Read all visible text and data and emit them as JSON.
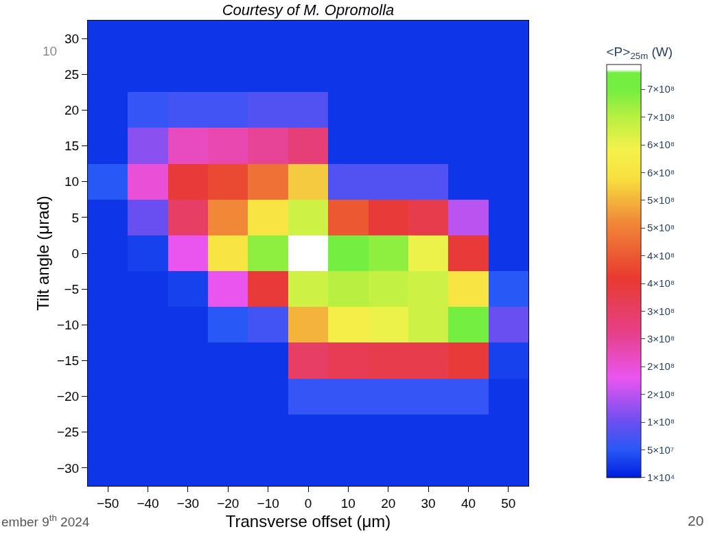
{
  "chart_data": {
    "type": "heatmap",
    "title": "Courtesy of M. Opromolla",
    "xlabel": "Transverse offset (μm)",
    "ylabel": "Tilt angle (μrad)",
    "clabel": "<P>$_{25m}$ (W)",
    "categories": [
      "−50",
      "−40",
      "−30",
      "−20",
      "−10",
      "0",
      "10",
      "20",
      "30",
      "40",
      "50"
    ],
    "y_categories": [
      "30",
      "25",
      "20",
      "15",
      "10",
      "5",
      "0",
      "−5",
      "−10",
      "−15",
      "−20",
      "−25",
      "−30"
    ],
    "cells": [
      [
        20000000.0,
        20000000.0,
        20000000.0,
        20000000.0,
        20000000.0,
        20000000.0,
        20000000.0,
        20000000.0,
        20000000.0,
        20000000.0,
        20000000.0
      ],
      [
        20000000.0,
        20000000.0,
        20000000.0,
        20000000.0,
        20000000.0,
        20000000.0,
        20000000.0,
        20000000.0,
        20000000.0,
        20000000.0,
        20000000.0
      ],
      [
        20000000.0,
        60000000.0,
        70000000.0,
        70000000.0,
        80000000.0,
        80000000.0,
        20000000.0,
        20000000.0,
        20000000.0,
        20000000.0,
        20000000.0
      ],
      [
        20000000.0,
        120000000.0,
        220000000.0,
        230000000.0,
        250000000.0,
        280000000.0,
        20000000.0,
        20000000.0,
        20000000.0,
        20000000.0,
        20000000.0
      ],
      [
        50000000.0,
        200000000.0,
        350000000.0,
        380000000.0,
        430000000.0,
        520000000.0,
        80000000.0,
        80000000.0,
        80000000.0,
        20000000.0,
        20000000.0
      ],
      [
        20000000.0,
        100000000.0,
        300000000.0,
        460000000.0,
        550000000.0,
        630000000.0,
        400000000.0,
        350000000.0,
        330000000.0,
        150000000.0,
        20000000.0
      ],
      [
        20000000.0,
        30000000.0,
        180000000.0,
        550000000.0,
        680000000.0,
        740000000.0,
        720000000.0,
        680000000.0,
        600000000.0,
        350000000.0,
        20000000.0
      ],
      [
        20000000.0,
        20000000.0,
        30000000.0,
        180000000.0,
        350000000.0,
        630000000.0,
        650000000.0,
        640000000.0,
        630000000.0,
        550000000.0,
        50000000.0
      ],
      [
        20000000.0,
        20000000.0,
        20000000.0,
        50000000.0,
        70000000.0,
        500000000.0,
        580000000.0,
        600000000.0,
        630000000.0,
        700000000.0,
        100000000.0
      ],
      [
        20000000.0,
        20000000.0,
        20000000.0,
        20000000.0,
        20000000.0,
        300000000.0,
        320000000.0,
        330000000.0,
        330000000.0,
        350000000.0,
        30000000.0
      ],
      [
        20000000.0,
        20000000.0,
        20000000.0,
        20000000.0,
        20000000.0,
        60000000.0,
        60000000.0,
        60000000.0,
        60000000.0,
        60000000.0,
        20000000.0
      ],
      [
        20000000.0,
        20000000.0,
        20000000.0,
        20000000.0,
        20000000.0,
        20000000.0,
        20000000.0,
        20000000.0,
        20000000.0,
        20000000.0,
        20000000.0
      ],
      [
        20000000.0,
        20000000.0,
        20000000.0,
        20000000.0,
        20000000.0,
        20000000.0,
        20000000.0,
        20000000.0,
        20000000.0,
        20000000.0,
        20000000.0
      ]
    ],
    "clim": [
      0,
      745000000
    ],
    "cticks": [
      {
        "value": 10000,
        "label": "1×10⁴"
      },
      {
        "value": 50000000,
        "label": "5×10⁷"
      },
      {
        "value": 100000000,
        "label": "1×10⁸"
      },
      {
        "value": 150000000,
        "label": "2×10⁸"
      },
      {
        "value": 200000000,
        "label": "2×10⁸"
      },
      {
        "value": 250000000,
        "label": "3×10⁸"
      },
      {
        "value": 300000000,
        "label": "3×10⁸"
      },
      {
        "value": 350000000,
        "label": "4×10⁸"
      },
      {
        "value": 400000000,
        "label": "4×10⁸"
      },
      {
        "value": 450000000,
        "label": "5×10⁸"
      },
      {
        "value": 500000000,
        "label": "5×10⁸"
      },
      {
        "value": 550000000,
        "label": "6×10⁸"
      },
      {
        "value": 600000000,
        "label": "6×10⁸"
      },
      {
        "value": 650000000,
        "label": "7×10⁸"
      },
      {
        "value": 700000000,
        "label": "7×10⁸"
      }
    ],
    "annotations": [
      "10",
      "ember 9$^{th}$ 2024",
      "20"
    ]
  }
}
